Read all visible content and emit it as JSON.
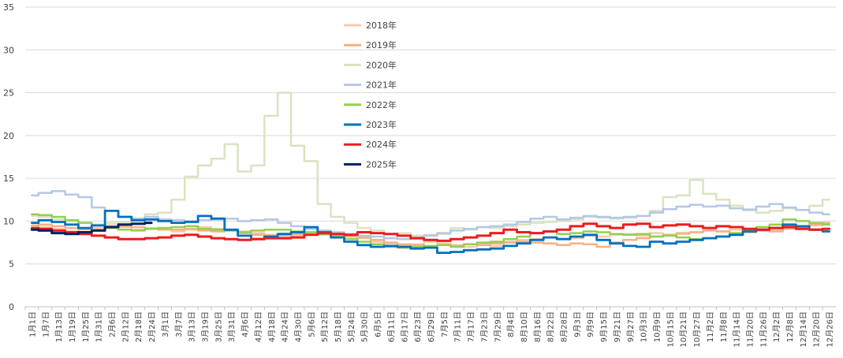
{
  "chart_data": {
    "type": "line",
    "title": "",
    "xlabel": "",
    "ylabel": "",
    "ylim": [
      0,
      35
    ],
    "yticks": [
      0,
      5,
      10,
      15,
      20,
      25,
      30,
      35
    ],
    "grid": "horizontal",
    "legend_position": "center-top",
    "x_categories": [
      "1月1日",
      "1月7日",
      "1月13日",
      "1月19日",
      "1月25日",
      "1月31日",
      "2月6日",
      "2月12日",
      "2月18日",
      "2月24日",
      "3月1日",
      "3月7日",
      "3月13日",
      "3月19日",
      "3月25日",
      "3月31日",
      "4月6日",
      "4月12日",
      "4月18日",
      "4月24日",
      "4月30日",
      "5月6日",
      "5月12日",
      "5月18日",
      "5月24日",
      "5月30日",
      "6月5日",
      "6月11日",
      "6月17日",
      "6月23日",
      "6月29日",
      "7月5日",
      "7月11日",
      "7月17日",
      "7月23日",
      "7月29日",
      "8月4日",
      "8月10日",
      "8月16日",
      "8月22日",
      "8月28日",
      "9月3日",
      "9月9日",
      "9月15日",
      "9月21日",
      "9月27日",
      "10月3日",
      "10月9日",
      "10月15日",
      "10月21日",
      "10月27日",
      "11月2日",
      "11月8日",
      "11月14日",
      "11月20日",
      "11月26日",
      "12月2日",
      "12月8日",
      "12月14日",
      "12月20日",
      "12月26日"
    ],
    "series": [
      {
        "name": "2018年",
        "color": "#f8cbad",
        "width": 2.5,
        "values": [
          9.2,
          9.3,
          9.1,
          8.8,
          9.0,
          9.2,
          9.5,
          9.3,
          9.0,
          9.2,
          9.0,
          8.8,
          9.0,
          9.3,
          9.1,
          9.0,
          8.8,
          8.6,
          8.4,
          8.2,
          8.3,
          8.6,
          8.4,
          8.5,
          8.3,
          8.0,
          7.6,
          7.4,
          7.2,
          7.3,
          7.6,
          7.4,
          7.2,
          7.0,
          7.3,
          7.1,
          7.6,
          7.8,
          7.9,
          8.1,
          7.9,
          8.0,
          8.3,
          8.2,
          8.4,
          8.5,
          8.3,
          8.6,
          8.4,
          8.5,
          8.7,
          8.9,
          8.8,
          9.0,
          9.1,
          8.9,
          9.0,
          9.1,
          9.3,
          9.5,
          9.7
        ]
      },
      {
        "name": "2019年",
        "color": "#f4b183",
        "width": 2.5,
        "values": [
          9.5,
          9.6,
          9.4,
          9.2,
          9.1,
          9.0,
          9.3,
          9.4,
          9.3,
          9.1,
          9.0,
          9.0,
          9.1,
          8.9,
          8.8,
          8.9,
          8.6,
          8.4,
          8.3,
          8.4,
          8.5,
          8.7,
          8.6,
          8.4,
          8.2,
          8.1,
          7.8,
          7.5,
          7.3,
          7.2,
          7.0,
          7.2,
          7.1,
          7.3,
          7.2,
          7.4,
          7.5,
          7.6,
          7.5,
          7.4,
          7.2,
          7.4,
          7.3,
          7.0,
          7.5,
          7.8,
          8.0,
          8.2,
          8.4,
          8.6,
          8.7,
          8.9,
          8.8,
          8.6,
          8.7,
          8.9,
          8.8,
          9.1,
          9.3,
          9.6,
          9.8
        ]
      },
      {
        "name": "2020年",
        "color": "#d9e3c0",
        "width": 2.5,
        "values": [
          10.6,
          10.5,
          10.2,
          10.0,
          9.8,
          9.6,
          9.8,
          9.9,
          10.2,
          10.8,
          11.0,
          12.5,
          15.2,
          16.5,
          17.3,
          19.0,
          15.8,
          16.5,
          22.3,
          25.0,
          18.8,
          17.0,
          12.0,
          10.5,
          9.8,
          9.2,
          8.9,
          8.5,
          8.6,
          8.3,
          8.4,
          8.5,
          9.2,
          9.0,
          9.3,
          9.2,
          9.4,
          9.6,
          9.8,
          9.9,
          10.0,
          10.2,
          10.5,
          10.4,
          10.3,
          10.4,
          10.6,
          11.2,
          12.8,
          13.0,
          14.8,
          13.2,
          12.5,
          11.8,
          11.4,
          11.0,
          11.2,
          11.5,
          11.3,
          11.8,
          12.5
        ]
      },
      {
        "name": "2021年",
        "color": "#b4c7e7",
        "width": 2.5,
        "values": [
          13.0,
          13.3,
          13.5,
          13.1,
          12.8,
          11.6,
          11.2,
          10.5,
          10.3,
          10.5,
          10.2,
          10.1,
          10.0,
          10.1,
          10.2,
          10.3,
          10.0,
          10.1,
          10.2,
          9.8,
          9.4,
          9.1,
          8.9,
          8.7,
          8.5,
          8.3,
          8.2,
          8.0,
          7.9,
          8.1,
          8.3,
          8.6,
          8.9,
          9.1,
          9.3,
          9.4,
          9.6,
          9.9,
          10.3,
          10.5,
          10.2,
          10.4,
          10.6,
          10.5,
          10.4,
          10.5,
          10.6,
          11.0,
          11.4,
          11.7,
          11.9,
          11.7,
          11.8,
          11.5,
          11.3,
          11.7,
          12.0,
          11.6,
          11.3,
          11.0,
          10.8
        ]
      },
      {
        "name": "2022年",
        "color": "#92d050",
        "width": 2.5,
        "values": [
          10.8,
          10.7,
          10.5,
          10.1,
          9.8,
          9.5,
          9.2,
          9.0,
          8.9,
          9.1,
          9.2,
          9.3,
          9.4,
          9.1,
          9.0,
          8.9,
          8.7,
          8.9,
          9.0,
          9.0,
          8.8,
          8.7,
          8.5,
          8.2,
          7.9,
          7.6,
          7.3,
          7.0,
          6.9,
          7.0,
          7.1,
          7.2,
          7.0,
          7.3,
          7.5,
          7.6,
          7.9,
          8.2,
          8.6,
          8.8,
          8.5,
          8.6,
          8.8,
          8.7,
          8.5,
          8.4,
          8.5,
          8.2,
          8.3,
          8.1,
          7.9,
          8.0,
          8.2,
          8.6,
          9.0,
          9.3,
          9.6,
          10.2,
          10.0,
          9.8,
          9.6
        ]
      },
      {
        "name": "2023年",
        "color": "#0070c0",
        "width": 2.8,
        "values": [
          9.8,
          10.1,
          9.9,
          9.6,
          9.2,
          9.5,
          11.2,
          10.5,
          10.1,
          10.2,
          10.0,
          9.8,
          9.9,
          10.6,
          10.3,
          9.0,
          8.3,
          7.9,
          8.2,
          8.5,
          8.7,
          9.3,
          8.7,
          8.1,
          7.6,
          7.2,
          7.0,
          7.1,
          7.0,
          6.8,
          6.9,
          6.3,
          6.4,
          6.6,
          6.7,
          6.8,
          7.1,
          7.4,
          7.8,
          8.1,
          7.9,
          8.2,
          8.4,
          7.8,
          7.4,
          7.1,
          7.0,
          7.6,
          7.4,
          7.6,
          7.8,
          8.0,
          8.2,
          8.4,
          8.8,
          9.0,
          9.2,
          9.6,
          9.4,
          9.0,
          8.8
        ]
      },
      {
        "name": "2024年",
        "color": "#ee1c1c",
        "width": 3.0,
        "values": [
          9.2,
          9.1,
          8.9,
          8.7,
          8.5,
          8.3,
          8.1,
          7.9,
          7.9,
          8.0,
          8.1,
          8.3,
          8.4,
          8.2,
          8.0,
          7.9,
          7.8,
          7.9,
          8.0,
          8.0,
          8.1,
          8.4,
          8.6,
          8.5,
          8.4,
          8.7,
          8.6,
          8.5,
          8.3,
          8.0,
          7.8,
          7.7,
          7.9,
          8.1,
          8.3,
          8.6,
          9.0,
          8.7,
          8.6,
          8.8,
          9.0,
          9.4,
          9.7,
          9.4,
          9.2,
          9.6,
          9.7,
          9.3,
          9.5,
          9.6,
          9.4,
          9.2,
          9.4,
          9.3,
          9.1,
          9.0,
          9.2,
          9.3,
          9.1,
          9.0,
          9.1
        ]
      },
      {
        "name": "2025年",
        "color": "#002060",
        "width": 3.0,
        "values": [
          9.0,
          8.9,
          8.6,
          8.5,
          8.7,
          8.9,
          9.3,
          9.6,
          9.7,
          9.8
        ]
      }
    ]
  }
}
